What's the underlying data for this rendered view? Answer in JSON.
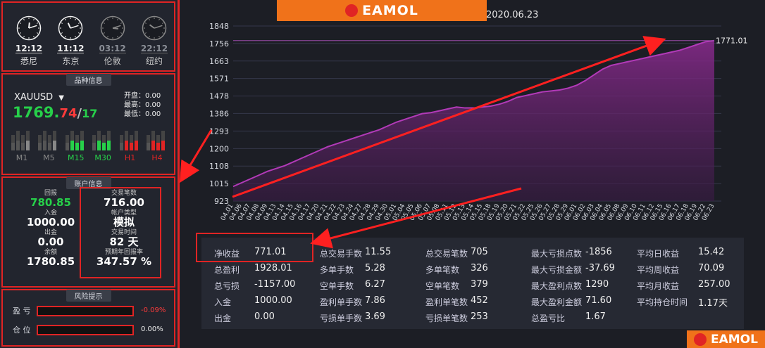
{
  "clocks": [
    {
      "time": "12:12",
      "city": "悉尼",
      "active": true,
      "hour": 0,
      "minute": 12
    },
    {
      "time": "11:12",
      "city": "东京",
      "active": true,
      "hour": 11,
      "minute": 12
    },
    {
      "time": "03:12",
      "city": "伦敦",
      "active": false,
      "hour": 3,
      "minute": 12
    },
    {
      "time": "22:12",
      "city": "纽约",
      "active": false,
      "hour": 10,
      "minute": 12
    }
  ],
  "symbol": {
    "section_title": "品种信息",
    "name": "XAUUSD",
    "dropdown": "▼",
    "price_main": "1769.",
    "price_bid": "74",
    "price_sep": "/",
    "price_ask": "17",
    "open_label": "开盘：0.00",
    "high_label": "最高：0.00",
    "low_label": "最低：0.00",
    "timeframes": [
      "M1",
      "M5",
      "M15",
      "M30",
      "H1",
      "H4"
    ]
  },
  "account": {
    "section_title": "账户信息",
    "items_left": [
      {
        "label": "回报",
        "value": "780.85"
      },
      {
        "label": "入金",
        "value": "1000.00"
      },
      {
        "label": "出金",
        "value": "0.00"
      },
      {
        "label": "余额",
        "value": "1780.85"
      }
    ],
    "items_right": [
      {
        "label": "交易笔数",
        "value": "716.00"
      },
      {
        "label": "帐户类型",
        "value": "模拟"
      },
      {
        "label": "交易时间",
        "value": "82 天"
      },
      {
        "label": "预期年回报率",
        "value": "347.57 %"
      }
    ]
  },
  "risk": {
    "section_title": "风险提示",
    "rows": [
      {
        "label": "盈 亏",
        "value": "-0.09%",
        "fill": 0
      },
      {
        "label": "仓 位",
        "value": "0.00%",
        "fill": 0
      }
    ]
  },
  "brand": {
    "text": "EAMOL"
  },
  "chart_title_date": "2020.06.23",
  "chart_data": {
    "type": "area",
    "yticks": [
      923,
      1015,
      1108,
      1200,
      1293,
      1386,
      1478,
      1571,
      1663,
      1756,
      1848
    ],
    "ylim": [
      923,
      1848
    ],
    "end_label": "1771.01",
    "x": [
      "04.01",
      "04.06",
      "04.07",
      "04.08",
      "04.09",
      "04.13",
      "04.14",
      "04.15",
      "04.16",
      "04.17",
      "04.20",
      "04.21",
      "04.22",
      "04.23",
      "04.24",
      "04.27",
      "04.28",
      "04.29",
      "04.30",
      "05.01",
      "05.04",
      "05.05",
      "05.06",
      "05.07",
      "05.08",
      "05.11",
      "05.12",
      "05.13",
      "05.14",
      "05.15",
      "05.18",
      "05.19",
      "05.20",
      "05.21",
      "05.22",
      "05.25",
      "05.26",
      "05.27",
      "05.28",
      "05.29",
      "06.01",
      "06.02",
      "06.03",
      "06.04",
      "06.05",
      "06.08",
      "06.09",
      "06.10",
      "06.11",
      "06.12",
      "06.15",
      "06.16",
      "06.17",
      "06.18",
      "06.19",
      "06.22",
      "06.23"
    ],
    "values": [
      1000,
      1020,
      1040,
      1060,
      1080,
      1095,
      1110,
      1130,
      1150,
      1170,
      1190,
      1210,
      1225,
      1240,
      1255,
      1270,
      1285,
      1300,
      1320,
      1340,
      1355,
      1370,
      1385,
      1390,
      1400,
      1410,
      1420,
      1415,
      1415,
      1420,
      1425,
      1435,
      1450,
      1470,
      1480,
      1490,
      1500,
      1505,
      1510,
      1520,
      1535,
      1560,
      1590,
      1620,
      1640,
      1650,
      1660,
      1670,
      1680,
      1690,
      1700,
      1710,
      1720,
      1735,
      1750,
      1765,
      1771.01
    ]
  },
  "stats": [
    [
      {
        "label": "净收益",
        "value": "771.01"
      },
      {
        "label": "总盈利",
        "value": "1928.01"
      },
      {
        "label": "总亏损",
        "value": "-1157.00"
      },
      {
        "label": "入金",
        "value": "1000.00"
      },
      {
        "label": "出金",
        "value": "0.00"
      }
    ],
    [
      {
        "label": "总交易手数",
        "value": "11.55"
      },
      {
        "label": "多单手数",
        "value": "5.28"
      },
      {
        "label": "空单手数",
        "value": "6.27"
      },
      {
        "label": "盈利单手数",
        "value": "7.86"
      },
      {
        "label": "亏损单手数",
        "value": "3.69"
      }
    ],
    [
      {
        "label": "总交易笔数",
        "value": "705"
      },
      {
        "label": "多单笔数",
        "value": "326"
      },
      {
        "label": "空单笔数",
        "value": "379"
      },
      {
        "label": "盈利单笔数",
        "value": "452"
      },
      {
        "label": "亏损单笔数",
        "value": "253"
      }
    ],
    [
      {
        "label": "最大亏损点数",
        "value": "-1856"
      },
      {
        "label": "最大亏损金额",
        "value": "-37.69"
      },
      {
        "label": "最大盈利点数",
        "value": "1290"
      },
      {
        "label": "最大盈利金额",
        "value": "71.60"
      },
      {
        "label": "总盈亏比",
        "value": "1.67"
      }
    ],
    [
      {
        "label": "平均日收益",
        "value": "15.42"
      },
      {
        "label": "平均周收益",
        "value": "70.09"
      },
      {
        "label": "平均月收益",
        "value": "257.00"
      },
      {
        "label": "平均持仓时间",
        "value": "1.17天"
      }
    ]
  ],
  "colors": {
    "accent_red": "#e02424",
    "up_green": "#27d04a",
    "brand_orange": "#f0721a",
    "area_purple": "#8a2a8e"
  }
}
